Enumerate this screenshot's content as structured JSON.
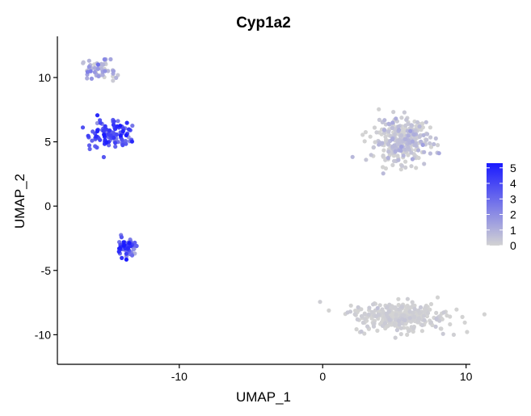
{
  "chart_data": {
    "type": "scatter",
    "title": "Cyp1a2",
    "xlabel": "UMAP_1",
    "ylabel": "UMAP_2",
    "xlim": [
      -18.5,
      10.3
    ],
    "ylim": [
      -12.3,
      13.2
    ],
    "xticks": [
      -10,
      0,
      10
    ],
    "xtick_labels": [
      "-10",
      "0",
      "10"
    ],
    "yticks": [
      -10,
      -5,
      0,
      5,
      10
    ],
    "ytick_labels": [
      "-10",
      "-5",
      "0",
      "5",
      "10"
    ],
    "grid": false,
    "legend": {
      "placement": "right",
      "type": "colorbar",
      "min": 0,
      "max": 5.3,
      "ticks": [
        0,
        1,
        2,
        3,
        4,
        5
      ],
      "tick_labels": [
        "0",
        "1",
        "2",
        "3",
        "4",
        "5"
      ],
      "low_color": "#d3d3d3",
      "high_color": "#1a1aff"
    },
    "clusters": [
      {
        "center": [
          -15.6,
          10.6
        ],
        "spread": [
          0.6,
          0.4
        ],
        "n": 55,
        "expr_mean": 0.8,
        "expr_sd": 0.7
      },
      {
        "center": [
          -14.8,
          5.6
        ],
        "spread": [
          0.75,
          0.55
        ],
        "n": 110,
        "expr_mean": 3.7,
        "expr_sd": 1.0
      },
      {
        "center": [
          -13.7,
          -3.2
        ],
        "spread": [
          0.3,
          0.35
        ],
        "n": 55,
        "expr_mean": 3.4,
        "expr_sd": 1.2
      },
      {
        "center": [
          5.4,
          5.1
        ],
        "spread": [
          1.0,
          0.85
        ],
        "n": 330,
        "expr_mean": 0.15,
        "expr_sd": 0.45
      },
      {
        "center": [
          5.4,
          -8.6
        ],
        "spread": [
          1.65,
          0.55
        ],
        "n": 330,
        "expr_mean": 0.02,
        "expr_sd": 0.15
      }
    ]
  }
}
